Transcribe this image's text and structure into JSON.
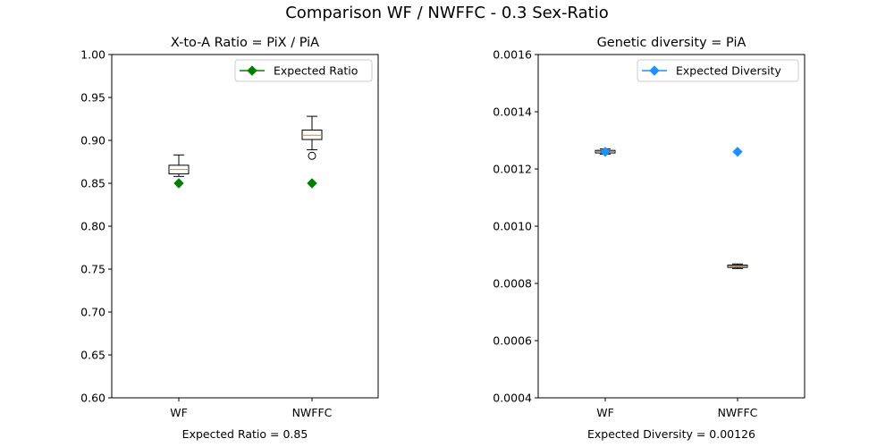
{
  "figure_title": "Comparison WF / NWFFC - 0.3 Sex-Ratio",
  "chart_data": [
    {
      "type": "box",
      "title": "X-to-A Ratio = PiX / PiA",
      "xlabel": "Expected Ratio = 0.85",
      "ylabel": "",
      "categories": [
        "WF",
        "NWFFC"
      ],
      "ylim": [
        0.6,
        1.0
      ],
      "yticks": [
        0.6,
        0.65,
        0.7,
        0.75,
        0.8,
        0.85,
        0.9,
        0.95,
        1.0
      ],
      "ytick_labels": [
        "0.60",
        "0.65",
        "0.70",
        "0.75",
        "0.80",
        "0.85",
        "0.90",
        "0.95",
        "1.00"
      ],
      "boxes": [
        {
          "category": "WF",
          "whisker_low": 0.858,
          "q1": 0.861,
          "median": 0.866,
          "q3": 0.871,
          "whisker_high": 0.883,
          "outliers": []
        },
        {
          "category": "NWFFC",
          "whisker_low": 0.889,
          "q1": 0.901,
          "median": 0.906,
          "q3": 0.912,
          "whisker_high": 0.928,
          "outliers": [
            0.882
          ]
        }
      ],
      "expected_series": {
        "name": "Expected Ratio",
        "color": "#008000",
        "values": [
          0.85,
          0.85
        ]
      },
      "legend_position": "upper-right",
      "grid": false
    },
    {
      "type": "box",
      "title": "Genetic diversity = PiA",
      "xlabel": "Expected Diversity = 0.00126",
      "ylabel": "",
      "categories": [
        "WF",
        "NWFFC"
      ],
      "ylim": [
        0.0004,
        0.0016
      ],
      "yticks": [
        0.0004,
        0.0006,
        0.0008,
        0.001,
        0.0012,
        0.0014,
        0.0016
      ],
      "ytick_labels": [
        "0.0004",
        "0.0006",
        "0.0008",
        "0.0010",
        "0.0012",
        "0.0014",
        "0.0016"
      ],
      "boxes": [
        {
          "category": "WF",
          "whisker_low": 0.001252,
          "q1": 0.001256,
          "median": 0.001261,
          "q3": 0.001265,
          "whisker_high": 0.00127,
          "outliers": []
        },
        {
          "category": "NWFFC",
          "whisker_low": 0.000852,
          "q1": 0.000856,
          "median": 0.00086,
          "q3": 0.000864,
          "whisker_high": 0.000868,
          "outliers": []
        }
      ],
      "expected_series": {
        "name": "Expected Diversity",
        "color": "#1e90ff",
        "values": [
          0.00126,
          0.00126
        ]
      },
      "legend_position": "upper-right",
      "grid": false
    }
  ],
  "colors": {
    "box_edge": "#000000",
    "median": "#ff7f0e",
    "box_fill": "#ffffff"
  }
}
